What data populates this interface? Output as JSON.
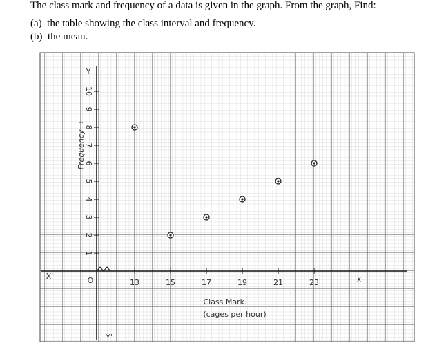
{
  "question": {
    "text": "The class mark and frequency of a data is given in the graph. From the graph, Find:",
    "parts": [
      {
        "label": "(a)",
        "text": "the table showing the class interval and frequency."
      },
      {
        "label": "(b)",
        "text": "the mean."
      }
    ]
  },
  "chart_data": {
    "type": "scatter",
    "x_label": "Class Mark.",
    "x_sublabel": "(cages per hour)",
    "y_label": "Frequency →",
    "origin_label": "O",
    "axis_names": {
      "x": "X",
      "x_neg": "X'",
      "y": "Y",
      "y_neg": "Y'"
    },
    "x": [
      13,
      15,
      17,
      19,
      21,
      23
    ],
    "y": [
      8,
      2,
      3,
      4,
      5,
      6
    ],
    "xlim": [
      11,
      27
    ],
    "ylim": [
      0,
      11
    ],
    "xticks": [
      13,
      15,
      17,
      19,
      21,
      23
    ],
    "yticks": [
      1,
      2,
      3,
      4,
      5,
      6,
      7,
      8,
      9,
      10
    ],
    "color": "#222222"
  }
}
